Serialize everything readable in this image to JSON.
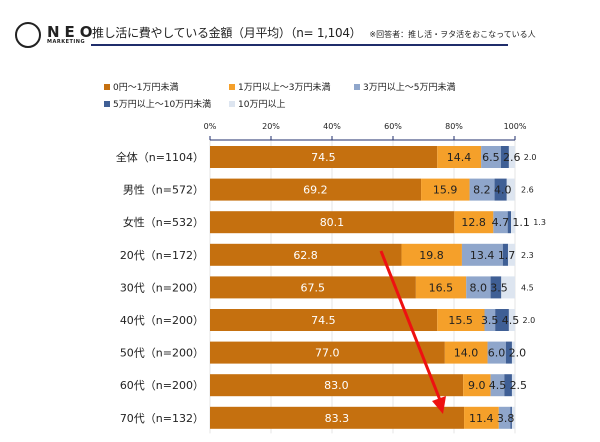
{
  "header": {
    "logo_main": "NEO",
    "logo_sub": "MARKETING",
    "title": "推し活に費やしている金額（月平均）（n= 1,104）",
    "note": "※回答者：推し活・ヲタ活をおこなっている人"
  },
  "colors": {
    "accent": "#1f2d6b",
    "arrow": "#ee1111"
  },
  "chart_data": {
    "type": "bar",
    "orientation": "horizontal",
    "stacked": true,
    "grid": true,
    "legend_position": "top",
    "xlim": [
      0,
      100
    ],
    "xticks": [
      "0%",
      "20%",
      "40%",
      "60%",
      "80%",
      "100%"
    ],
    "categories": [
      "全体（n=1104）",
      "男性（n=572）",
      "女性（n=532）",
      "20代（n=172）",
      "30代（n=200）",
      "40代（n=200）",
      "50代（n=200）",
      "60代（n=200）",
      "70代（n=132）"
    ],
    "series": [
      {
        "name": "0円～1万円未満",
        "color": "#C5700F",
        "values": [
          74.5,
          69.2,
          80.1,
          62.8,
          67.5,
          74.5,
          77.0,
          83.0,
          83.3
        ]
      },
      {
        "name": "1万円以上～3万円未満",
        "color": "#F5A02A",
        "values": [
          14.4,
          15.9,
          12.8,
          19.8,
          16.5,
          15.5,
          14.0,
          9.0,
          11.4
        ]
      },
      {
        "name": "3万円以上～5万円未満",
        "color": "#8FA6CB",
        "values": [
          6.5,
          8.2,
          4.7,
          13.4,
          8.0,
          3.5,
          6.0,
          4.5,
          3.8
        ]
      },
      {
        "name": "5万円以上～10万円未満",
        "color": "#3F5F95",
        "values": [
          2.6,
          4.0,
          1.1,
          1.7,
          3.5,
          4.5,
          2.0,
          2.5,
          0.5
        ]
      },
      {
        "name": "10万円以上",
        "color": "#DDE5F0",
        "values": [
          2.0,
          2.6,
          1.3,
          2.3,
          4.5,
          2.0,
          1.0,
          1.0,
          1.0
        ]
      }
    ],
    "labels": [
      [
        "74.5",
        "14.4",
        "6.5",
        "2.6",
        "2.0"
      ],
      [
        "69.2",
        "15.9",
        "8.2",
        "4.0",
        "2.6"
      ],
      [
        "80.1",
        "12.8",
        "4.7",
        "1.1",
        "1.3"
      ],
      [
        "62.8",
        "19.8",
        "13.4",
        "1.7",
        "2.3"
      ],
      [
        "67.5",
        "16.5",
        "8.0",
        "3.5",
        "4.5"
      ],
      [
        "74.5",
        "15.5",
        "3.5",
        "4.5",
        "2.0"
      ],
      [
        "77.0",
        "14.0",
        "6.0",
        "2.0",
        ""
      ],
      [
        "83.0",
        "9.0",
        "4.5",
        "2.5",
        ""
      ],
      [
        "83.3",
        "11.4",
        "3.8",
        "",
        ""
      ]
    ]
  }
}
